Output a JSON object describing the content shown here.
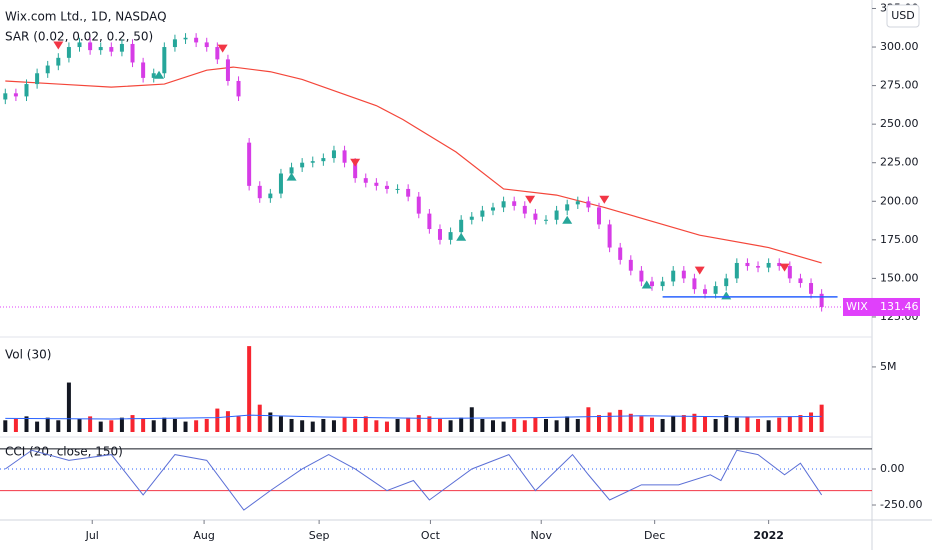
{
  "chart_data": [
    {
      "type": "candlestick",
      "title": "Wix.com Ltd., 1D, NASDAQ",
      "subtitle": "SAR (0.02, 0.02, 0.2, 50)",
      "currency": "USD",
      "symbol": "WIX",
      "last_value": 131.46,
      "up_color": "#26a69a",
      "down_color": "#d63ce6",
      "last_color": "#e040fb",
      "x": [
        0,
        2,
        4,
        6,
        8,
        10,
        12,
        14,
        16,
        18,
        20,
        22,
        24,
        26,
        28,
        30,
        32,
        34,
        36,
        38,
        40,
        42,
        44,
        46,
        48,
        50,
        52,
        54,
        56,
        58,
        60,
        62,
        64,
        66,
        68,
        70,
        72,
        74,
        76,
        78,
        80,
        82,
        84,
        86,
        88,
        90,
        92,
        94,
        96,
        98,
        100,
        102,
        104,
        106,
        108,
        110,
        112,
        114,
        116,
        118,
        120,
        122,
        124,
        126,
        128,
        130,
        132,
        134,
        136,
        138,
        140,
        142,
        144,
        146,
        148,
        150,
        152,
        154
      ],
      "open": [
        266,
        270,
        268,
        276,
        283,
        288,
        293,
        300,
        303,
        298,
        300,
        297,
        302,
        290,
        280,
        283,
        300,
        305,
        306,
        303,
        300,
        292,
        278,
        238,
        210,
        202,
        205,
        218,
        222,
        225,
        226,
        228,
        233,
        225,
        215,
        212,
        210,
        208,
        208,
        203,
        192,
        182,
        175,
        180,
        188,
        190,
        194,
        196,
        200,
        197,
        192,
        188,
        188,
        194,
        198,
        200,
        196,
        185,
        170,
        162,
        155,
        148,
        145,
        148,
        155,
        150,
        143,
        140,
        145,
        150,
        160,
        158,
        157,
        160,
        158,
        150,
        147,
        140
      ],
      "high": [
        273,
        273,
        279,
        286,
        291,
        296,
        303,
        306,
        306,
        303,
        303,
        305,
        305,
        293,
        286,
        303,
        308,
        309,
        309,
        306,
        303,
        295,
        281,
        241,
        213,
        208,
        221,
        225,
        228,
        229,
        231,
        236,
        236,
        228,
        218,
        215,
        213,
        211,
        211,
        206,
        195,
        185,
        183,
        191,
        193,
        197,
        199,
        203,
        203,
        200,
        195,
        191,
        197,
        201,
        203,
        203,
        199,
        188,
        173,
        165,
        158,
        151,
        151,
        158,
        158,
        153,
        146,
        148,
        153,
        163,
        163,
        161,
        163,
        163,
        161,
        153,
        150,
        143
      ],
      "low": [
        263,
        265,
        265,
        273,
        280,
        285,
        290,
        297,
        295,
        295,
        294,
        294,
        287,
        277,
        277,
        280,
        297,
        302,
        300,
        297,
        289,
        275,
        265,
        207,
        199,
        199,
        202,
        215,
        219,
        222,
        223,
        225,
        222,
        212,
        209,
        207,
        205,
        205,
        200,
        189,
        179,
        172,
        172,
        177,
        185,
        187,
        191,
        193,
        194,
        189,
        185,
        185,
        185,
        191,
        195,
        193,
        182,
        167,
        159,
        152,
        145,
        142,
        142,
        145,
        147,
        140,
        137,
        137,
        142,
        147,
        155,
        154,
        154,
        155,
        147,
        144,
        137,
        128.5
      ],
      "close": [
        270,
        268,
        276,
        283,
        288,
        293,
        300,
        303,
        298,
        300,
        297,
        302,
        290,
        280,
        283,
        300,
        305,
        306,
        303,
        300,
        292,
        278,
        268,
        210,
        202,
        205,
        218,
        222,
        225,
        226,
        228,
        233,
        225,
        215,
        212,
        210,
        208,
        208,
        203,
        192,
        182,
        175,
        180,
        188,
        190,
        194,
        196,
        200,
        197,
        192,
        188,
        188,
        194,
        198,
        200,
        196,
        185,
        170,
        162,
        155,
        148,
        145,
        148,
        155,
        150,
        143,
        140,
        145,
        150,
        160,
        158,
        157,
        160,
        158,
        150,
        147,
        140,
        131.46
      ],
      "ma": {
        "color": "#f4463a",
        "x": [
          0,
          10,
          20,
          30,
          38,
          43,
          50,
          56,
          70,
          75,
          85,
          94,
          104,
          113,
          131,
          144,
          154
        ],
        "values": [
          278,
          276,
          274,
          276,
          285,
          287,
          284,
          279,
          262,
          253,
          232,
          208,
          204,
          196,
          178,
          170,
          160
        ]
      },
      "sar": [
        {
          "x": 10,
          "type": "sell",
          "value": 301
        },
        {
          "x": 29,
          "type": "buy",
          "value": 282
        },
        {
          "x": 41,
          "type": "sell",
          "value": 299
        },
        {
          "x": 54,
          "type": "buy",
          "value": 216
        },
        {
          "x": 66,
          "type": "sell",
          "value": 225
        },
        {
          "x": 86,
          "type": "buy",
          "value": 177
        },
        {
          "x": 99,
          "type": "sell",
          "value": 201
        },
        {
          "x": 106,
          "type": "buy",
          "value": 188
        },
        {
          "x": 113,
          "type": "sell",
          "value": 201
        },
        {
          "x": 121,
          "type": "buy",
          "value": 146
        },
        {
          "x": 131,
          "type": "sell",
          "value": 155
        },
        {
          "x": 136,
          "type": "buy",
          "value": 139
        },
        {
          "x": 147,
          "type": "sell",
          "value": 157
        }
      ],
      "trend_line": {
        "color": "#2962ff",
        "x": [
          124,
          157
        ],
        "y": [
          138,
          138
        ]
      },
      "xlim": [
        -1,
        163.5
      ],
      "ylim": [
        112,
        330.5
      ],
      "yticks": [
        {
          "value": 125,
          "label": "125.00"
        },
        {
          "value": 150,
          "label": "150.00"
        },
        {
          "value": 175,
          "label": "175.00"
        },
        {
          "value": 200,
          "label": "200.00"
        },
        {
          "value": 225,
          "label": "225.00"
        },
        {
          "value": 250,
          "label": "250.00"
        },
        {
          "value": 275,
          "label": "275.00"
        },
        {
          "value": 300,
          "label": "300.00"
        },
        {
          "value": 325,
          "label": "325.00"
        }
      ],
      "xticks": [
        {
          "value": 16.4,
          "label": "Jul"
        },
        {
          "value": 37.5,
          "label": "Aug"
        },
        {
          "value": 59.2,
          "label": "Sep"
        },
        {
          "value": 80.2,
          "label": "Oct"
        },
        {
          "value": 101.1,
          "label": "Nov"
        },
        {
          "value": 122.5,
          "label": "Dec"
        },
        {
          "value": 144,
          "label": "2022"
        }
      ]
    },
    {
      "type": "bar",
      "title": "Vol (30)",
      "up_color": "#131722",
      "down_color": "#f7252f",
      "values": [
        900000,
        1000000,
        1200000,
        800000,
        1100000,
        900000,
        3800000,
        1000000,
        1200000,
        800000,
        900000,
        1100000,
        1300000,
        1000000,
        900000,
        1100000,
        1000000,
        800000,
        900000,
        1000000,
        1800000,
        1600000,
        1200000,
        6600000,
        2100000,
        1500000,
        1200000,
        1000000,
        900000,
        800000,
        1000000,
        900000,
        1100000,
        1000000,
        1200000,
        900000,
        800000,
        1000000,
        1100000,
        1300000,
        1200000,
        1000000,
        900000,
        1100000,
        1900000,
        1000000,
        900000,
        800000,
        1000000,
        900000,
        1100000,
        1000000,
        900000,
        1200000,
        1000000,
        1900000,
        1300000,
        1500000,
        1700000,
        1400000,
        1200000,
        1100000,
        1000000,
        1200000,
        1300000,
        1400000,
        1200000,
        1000000,
        1300000,
        1100000,
        1200000,
        1000000,
        900000,
        1100000,
        1200000,
        1300000,
        1500000,
        2100000
      ],
      "ma": {
        "color": "#2962ff",
        "x": [
          0,
          20,
          40,
          46,
          60,
          80,
          100,
          120,
          140,
          154
        ],
        "values": [
          1050000,
          1000000,
          1100000,
          1300000,
          1150000,
          1050000,
          1100000,
          1250000,
          1150000,
          1200000
        ]
      },
      "ylim": [
        0,
        7300000
      ],
      "yticks": [
        {
          "value": 5000000,
          "label": "5M"
        }
      ]
    },
    {
      "type": "line",
      "title": "CCI (20, close, 150)",
      "color": "#5b6fd6",
      "x": [
        0,
        5,
        12,
        20,
        26,
        32,
        38,
        45,
        50,
        56,
        61,
        66,
        72,
        77,
        80,
        88,
        95,
        100,
        107,
        110,
        114,
        120,
        127,
        133,
        135,
        138,
        142,
        147,
        150,
        154
      ],
      "values": [
        0,
        130,
        60,
        100,
        -180,
        100,
        60,
        -285,
        -150,
        0,
        100,
        0,
        -150,
        -80,
        -215,
        0,
        100,
        -150,
        100,
        -40,
        -215,
        -110,
        -110,
        -40,
        -80,
        130,
        100,
        -40,
        40,
        -180
      ],
      "bands": [
        {
          "value": 140,
          "color": "#131722"
        },
        {
          "value": 0,
          "color": "#2962ff"
        },
        {
          "value": -150,
          "color": "#f23645"
        }
      ],
      "ylim": [
        -354,
        222
      ],
      "yticks": [
        {
          "value": 0,
          "label": "0.00"
        },
        {
          "value": -250,
          "label": "-250.00"
        }
      ]
    }
  ]
}
